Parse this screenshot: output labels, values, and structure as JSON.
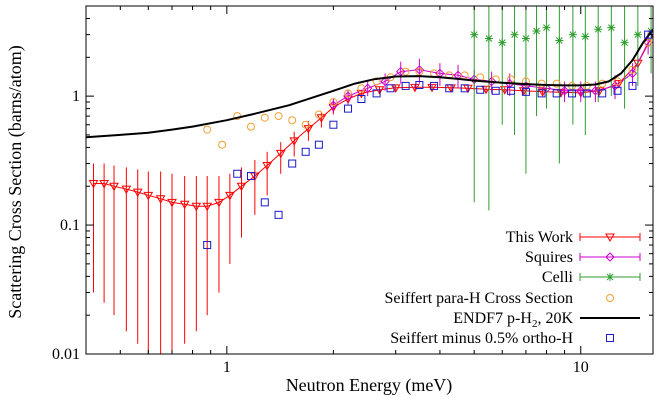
{
  "chart_data": {
    "type": "scatter",
    "xlabel": "Neutron Energy (meV)",
    "ylabel": "Scattering Cross Section (barns/atom)",
    "xscale": "log",
    "yscale": "log",
    "xlim": [
      0.4,
      16
    ],
    "ylim": [
      0.01,
      5
    ],
    "x_ticks": [
      1,
      10
    ],
    "x_tick_labels": [
      "1",
      "10"
    ],
    "y_ticks": [
      0.01,
      0.1,
      1
    ],
    "y_tick_labels": [
      "0.01",
      "0.1",
      "1"
    ],
    "grid": false,
    "legend_position": "bottom-right",
    "series": [
      {
        "name": "This Work",
        "color": "#ff0000",
        "marker": "triangle-down",
        "x": [
          0.42,
          0.45,
          0.48,
          0.52,
          0.56,
          0.6,
          0.65,
          0.7,
          0.76,
          0.82,
          0.88,
          0.95,
          1.02,
          1.1,
          1.2,
          1.3,
          1.42,
          1.55,
          1.7,
          1.85,
          2.0,
          2.2,
          2.4,
          2.7,
          3.0,
          3.4,
          3.8,
          4.3,
          4.8,
          5.4,
          6.1,
          6.9,
          7.8,
          8.8,
          10.0,
          11.3,
          12.8,
          14.5,
          16.0
        ],
        "y": [
          0.21,
          0.21,
          0.2,
          0.19,
          0.18,
          0.17,
          0.16,
          0.15,
          0.145,
          0.14,
          0.14,
          0.15,
          0.17,
          0.2,
          0.24,
          0.29,
          0.36,
          0.45,
          0.56,
          0.68,
          0.82,
          0.95,
          1.05,
          1.12,
          1.16,
          1.17,
          1.17,
          1.16,
          1.15,
          1.13,
          1.12,
          1.1,
          1.08,
          1.07,
          1.06,
          1.1,
          1.25,
          1.8,
          3.0
        ],
        "y_low": [
          0.03,
          0.025,
          0.02,
          0.015,
          0.012,
          0.01,
          0.01,
          0.01,
          0.012,
          0.015,
          0.02,
          0.03,
          0.05,
          0.08,
          0.12,
          0.17,
          0.25,
          0.34,
          0.45,
          0.57,
          0.72,
          0.86,
          0.97,
          1.05,
          1.1,
          1.12,
          1.12,
          1.11,
          1.1,
          1.08,
          1.07,
          1.05,
          1.03,
          1.02,
          1.01,
          1.05,
          1.18,
          1.6,
          2.5
        ],
        "y_high": [
          0.3,
          0.3,
          0.29,
          0.28,
          0.27,
          0.26,
          0.26,
          0.25,
          0.24,
          0.24,
          0.24,
          0.24,
          0.25,
          0.28,
          0.32,
          0.37,
          0.44,
          0.53,
          0.64,
          0.76,
          0.9,
          1.03,
          1.12,
          1.18,
          1.22,
          1.22,
          1.22,
          1.21,
          1.2,
          1.18,
          1.17,
          1.15,
          1.13,
          1.12,
          1.11,
          1.16,
          1.33,
          2.0,
          3.4
        ]
      },
      {
        "name": "Squires",
        "color": "#cc00cc",
        "marker": "diamond",
        "x": [
          2.0,
          2.2,
          2.5,
          2.8,
          3.1,
          3.5,
          4.0,
          4.5,
          5.0,
          5.6,
          6.3,
          7.0,
          8.0,
          9.0,
          10.0,
          11.0,
          12.5,
          14.0,
          15.5
        ],
        "y": [
          0.85,
          1.0,
          1.15,
          1.3,
          1.55,
          1.6,
          1.5,
          1.45,
          1.35,
          1.3,
          1.25,
          1.2,
          1.15,
          1.1,
          1.1,
          1.1,
          1.2,
          1.5,
          2.6
        ],
        "err": [
          0.1,
          0.12,
          0.15,
          0.2,
          0.3,
          0.35,
          0.3,
          0.3,
          0.25,
          0.25,
          0.25,
          0.2,
          0.2,
          0.2,
          0.2,
          0.2,
          0.25,
          0.3,
          0.5
        ]
      },
      {
        "name": "Celli",
        "color": "#2e9e2e",
        "marker": "star",
        "x": [
          5.0,
          5.5,
          6.0,
          6.5,
          7.0,
          7.5,
          8.0,
          8.7,
          9.5,
          10.3,
          11.2,
          12.2,
          13.3,
          14.5,
          15.8
        ],
        "y": [
          3.0,
          2.8,
          2.6,
          3.0,
          2.8,
          3.2,
          3.4,
          2.7,
          3.0,
          2.9,
          3.3,
          3.4,
          2.6,
          3.0,
          3.2
        ],
        "y_low": [
          0.15,
          0.13,
          0.6,
          0.5,
          0.25,
          0.7,
          0.8,
          0.3,
          0.6,
          0.5,
          0.9,
          1.0,
          0.8,
          1.2,
          1.5
        ],
        "y_high": [
          5.0,
          5.0,
          5.0,
          5.0,
          5.0,
          5.0,
          5.0,
          5.0,
          5.0,
          5.0,
          5.0,
          5.0,
          5.0,
          5.0,
          5.0
        ]
      },
      {
        "name": "Seiffert para-H Cross Section",
        "color": "#f0a030",
        "marker": "circle",
        "x": [
          0.88,
          0.97,
          1.07,
          1.17,
          1.28,
          1.4,
          1.53,
          1.67,
          1.82,
          2.0,
          2.2,
          2.4,
          2.65,
          2.9,
          3.2,
          3.5,
          3.85,
          4.25,
          4.7,
          5.2,
          5.75,
          6.35,
          7.0,
          7.75,
          8.55,
          9.45,
          10.4,
          11.5,
          12.7,
          14.0,
          15.5
        ],
        "y": [
          0.55,
          0.42,
          0.7,
          0.58,
          0.68,
          0.7,
          0.65,
          0.6,
          0.72,
          0.9,
          1.05,
          1.15,
          1.3,
          1.4,
          1.55,
          1.55,
          1.5,
          1.45,
          1.45,
          1.4,
          1.35,
          1.35,
          1.3,
          1.25,
          1.25,
          1.2,
          1.2,
          1.25,
          1.3,
          1.6,
          2.6
        ]
      },
      {
        "name": "ENDF7 p-H2, 20K",
        "color": "#000000",
        "marker": "line",
        "x": [
          0.4,
          0.5,
          0.6,
          0.7,
          0.8,
          1.0,
          1.2,
          1.5,
          1.8,
          2.0,
          2.3,
          2.6,
          3.0,
          3.5,
          4.0,
          4.5,
          5.0,
          6.0,
          7.0,
          8.0,
          9.0,
          10.0,
          11.0,
          12.0,
          13.0,
          14.0,
          15.0,
          16.0
        ],
        "y": [
          0.48,
          0.5,
          0.52,
          0.55,
          0.58,
          0.65,
          0.73,
          0.85,
          1.0,
          1.1,
          1.25,
          1.35,
          1.42,
          1.43,
          1.4,
          1.36,
          1.32,
          1.27,
          1.24,
          1.22,
          1.21,
          1.21,
          1.23,
          1.3,
          1.5,
          1.9,
          2.6,
          3.3
        ]
      },
      {
        "name": "Seiffert minus 0.5% ortho-H",
        "color": "#1a1acc",
        "marker": "square",
        "x": [
          0.88,
          1.07,
          1.17,
          1.28,
          1.4,
          1.53,
          1.67,
          1.82,
          2.0,
          2.2,
          2.4,
          2.65,
          2.9,
          3.2,
          3.5,
          3.85,
          4.25,
          4.7,
          5.2,
          5.75,
          6.35,
          7.0,
          7.75,
          8.55,
          9.45,
          10.4,
          11.5,
          12.7,
          14.0,
          15.5
        ],
        "y": [
          0.07,
          0.25,
          0.24,
          0.15,
          0.12,
          0.3,
          0.37,
          0.42,
          0.6,
          0.8,
          0.95,
          1.05,
          1.15,
          1.2,
          1.22,
          1.2,
          1.15,
          1.15,
          1.12,
          1.1,
          1.1,
          1.08,
          1.05,
          1.05,
          1.05,
          1.05,
          1.05,
          1.1,
          1.2,
          3.0
        ]
      }
    ]
  },
  "legend_items": [
    {
      "label": "This Work"
    },
    {
      "label": "Squires"
    },
    {
      "label": "Celli"
    },
    {
      "label": "Seiffert para-H Cross Section"
    },
    {
      "label": "ENDF7 p-H",
      "label_subscript": "2",
      "label_suffix": ", 20K"
    },
    {
      "label": "Seiffert minus  0.5% ortho-H"
    }
  ]
}
